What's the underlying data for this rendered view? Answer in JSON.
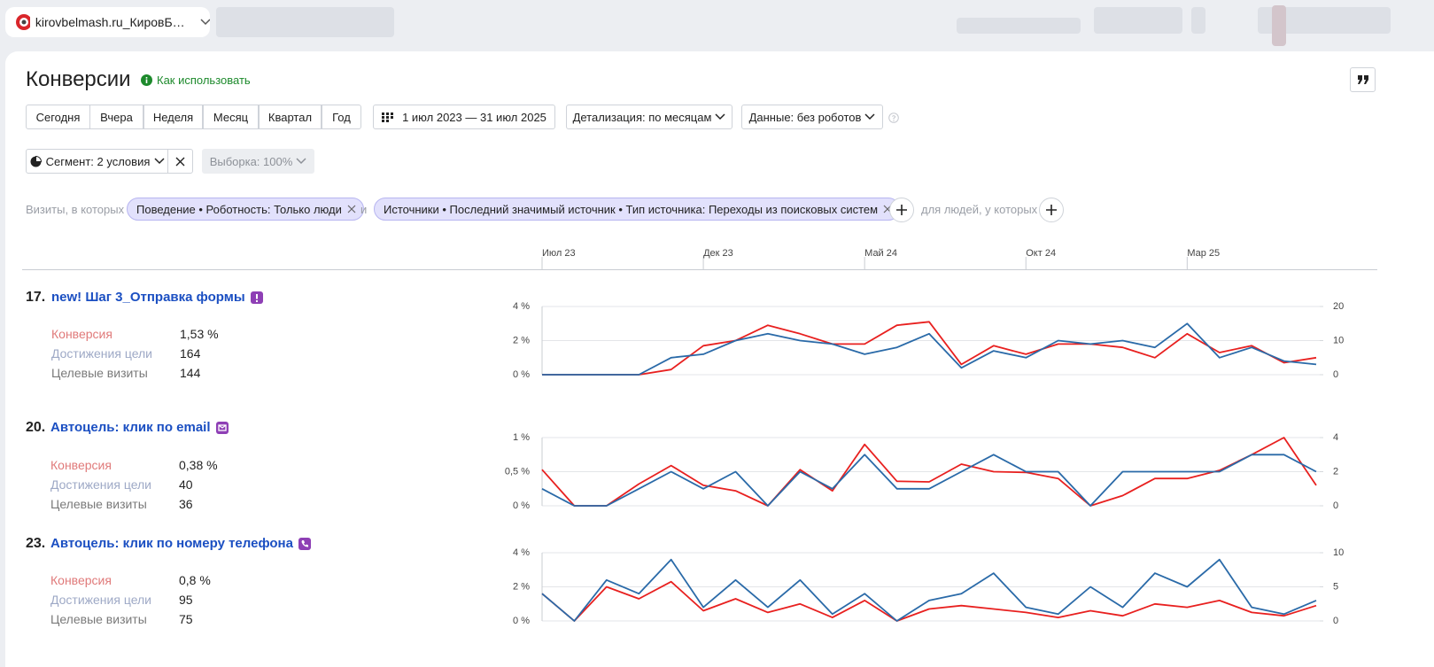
{
  "tab": {
    "title": "kirovbelmash.ru_КировБ…"
  },
  "header": {
    "title": "Конверсии",
    "help": "Как использовать"
  },
  "periods": [
    "Сегодня",
    "Вчера",
    "Неделя",
    "Месяц",
    "Квартал",
    "Год"
  ],
  "date_range": "1 июл 2023 — 31 июл 2025",
  "detail": "Детализация: по месяцам",
  "data_filter": "Данные: без роботов",
  "segment": "Сегмент: 2 условия",
  "sample": "Выборка: 100%",
  "filters": {
    "prefix": "Визиты, в которых",
    "conditions": [
      "Поведение • Роботность: Только люди",
      "Источники • Последний значимый источник • Тип источника: Переходы из поисковых систем"
    ],
    "joiner": "и",
    "people": "для людей, у которых"
  },
  "timeline": {
    "categories": [
      "Июл 23",
      null,
      null,
      null,
      null,
      "Дек 23",
      null,
      null,
      null,
      null,
      "Май 24",
      null,
      null,
      null,
      null,
      "Окт 24",
      null,
      null,
      null,
      null,
      "Мар 25",
      null,
      null,
      null,
      null
    ]
  },
  "goals": [
    {
      "number": "17.",
      "name": "new! Шаг 3_Отправка формы",
      "metrics": [
        {
          "label": "Конверсия",
          "value": "1,53 %"
        },
        {
          "label": "Достижения цели",
          "value": 164
        },
        {
          "label": "Целевые визиты",
          "value": 144
        }
      ],
      "chart": {
        "type": "line",
        "grid": true,
        "ylim": [
          0,
          4
        ],
        "yticks": [
          {
            "value": 0,
            "label": "0 %"
          },
          {
            "value": 2,
            "label": "2 %"
          },
          {
            "value": 4,
            "label": "4 %"
          }
        ],
        "y2lim": [
          0,
          20
        ],
        "y2ticks": [
          0,
          10,
          20
        ],
        "series": [
          {
            "color": "#e8201f",
            "values": [
              0,
              0,
              0,
              0,
              0.3,
              1.7,
              2.0,
              2.9,
              2.4,
              1.8,
              1.8,
              2.9,
              3.1,
              0.6,
              1.7,
              1.2,
              1.8,
              1.8,
              1.6,
              1.0,
              2.4,
              1.3,
              1.7,
              0.7,
              1.0
            ]
          },
          {
            "color": "#2a6aa8",
            "axis": "y2",
            "values": [
              0,
              0,
              0,
              0,
              5,
              6,
              10,
              12,
              10,
              9,
              6,
              8,
              12,
              2,
              7,
              5,
              10,
              9,
              10,
              8,
              15,
              5,
              8,
              4,
              3
            ]
          }
        ]
      }
    },
    {
      "number": "20.",
      "name": "Автоцель: клик по email",
      "metrics": [
        {
          "label": "Конверсия",
          "value": "0,38 %"
        },
        {
          "label": "Достижения цели",
          "value": 40
        },
        {
          "label": "Целевые визиты",
          "value": 36
        }
      ],
      "chart": {
        "type": "line",
        "grid": true,
        "ylim": [
          0,
          1
        ],
        "yticks": [
          {
            "value": 0,
            "label": "0 %"
          },
          {
            "value": 0.5,
            "label": "0,5 %"
          },
          {
            "value": 1,
            "label": "1 %"
          }
        ],
        "y2lim": [
          0,
          4
        ],
        "y2ticks": [
          0,
          2,
          4
        ],
        "series": [
          {
            "color": "#e8201f",
            "values": [
              0.53,
              0,
              0,
              0.32,
              0.59,
              0.3,
              0.22,
              0,
              0.53,
              0.22,
              0.9,
              0.36,
              0.35,
              0.61,
              0.5,
              0.49,
              0.4,
              0,
              0.15,
              0.4,
              0.4,
              0.52,
              0.75,
              1.0,
              0.3
            ]
          },
          {
            "color": "#2a6aa8",
            "axis": "y2",
            "values": [
              1,
              0,
              0,
              1,
              2,
              1,
              2,
              0,
              2,
              1,
              3,
              1,
              1,
              2,
              3,
              2,
              2,
              0,
              2,
              2,
              2,
              2,
              3,
              3,
              2
            ]
          }
        ]
      }
    },
    {
      "number": "23.",
      "name": "Автоцель: клик по номеру телефона",
      "metrics": [
        {
          "label": "Конверсия",
          "value": "0,8 %"
        },
        {
          "label": "Достижения цели",
          "value": 95
        },
        {
          "label": "Целевые визиты",
          "value": 75
        }
      ],
      "chart": {
        "type": "line",
        "grid": true,
        "ylim": [
          0,
          4
        ],
        "yticks": [
          {
            "value": 0,
            "label": "0 %"
          },
          {
            "value": 2,
            "label": "2 %"
          },
          {
            "value": 4,
            "label": "4 %"
          }
        ],
        "y2lim": [
          0,
          10
        ],
        "y2ticks": [
          0,
          5,
          10
        ],
        "series": [
          {
            "color": "#e8201f",
            "values": [
              1.6,
              0,
              2.0,
              1.3,
              2.3,
              0.6,
              1.3,
              0.5,
              1.0,
              0.2,
              1.2,
              0,
              0.7,
              0.9,
              0.7,
              0.5,
              0.2,
              0.6,
              0.3,
              1.0,
              0.8,
              1.2,
              0.5,
              0.3,
              0.9
            ]
          },
          {
            "color": "#2a6aa8",
            "axis": "y2",
            "values": [
              4,
              0,
              6,
              4,
              9,
              2,
              6,
              2,
              6,
              1,
              4,
              0,
              3,
              4,
              7,
              2,
              1,
              5,
              2,
              7,
              5,
              9,
              2,
              1,
              3
            ]
          }
        ]
      }
    }
  ]
}
